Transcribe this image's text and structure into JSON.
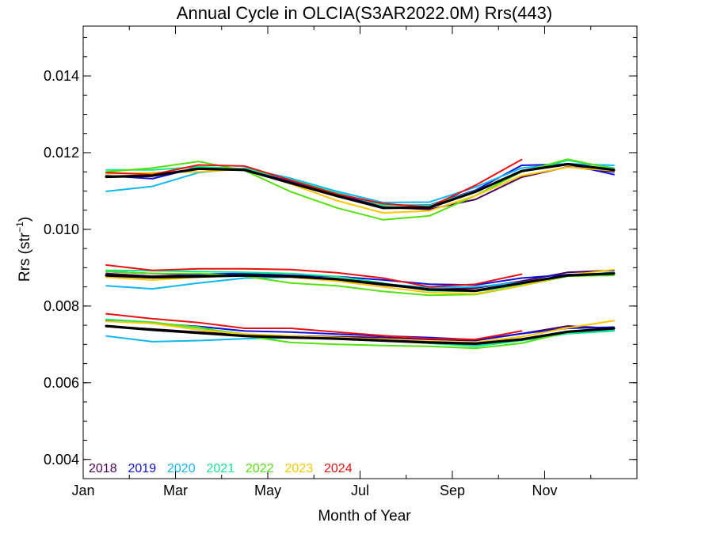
{
  "chart_data": {
    "type": "line",
    "title": "Annual Cycle in OLCIA(S3AR2022.0M) Rrs(443)",
    "xlabel": "Month of Year",
    "ylabel_main": "Rrs (str",
    "ylabel_sup": "−1",
    "ylabel_end": ")",
    "xlim": [
      0,
      12
    ],
    "ylim": [
      0.0035,
      0.0153
    ],
    "x_ticks": [
      {
        "value": 0,
        "label": "Jan"
      },
      {
        "value": 2,
        "label": "Mar"
      },
      {
        "value": 4,
        "label": "May"
      },
      {
        "value": 6,
        "label": "Jul"
      },
      {
        "value": 8,
        "label": "Sep"
      },
      {
        "value": 10,
        "label": "Nov"
      }
    ],
    "x_minor_ticks": [
      1,
      3,
      5,
      7,
      9,
      11
    ],
    "y_ticks": [
      {
        "value": 0.004,
        "label": "0.004"
      },
      {
        "value": 0.006,
        "label": "0.006"
      },
      {
        "value": 0.008,
        "label": "0.008"
      },
      {
        "value": 0.01,
        "label": "0.010"
      },
      {
        "value": 0.012,
        "label": "0.012"
      },
      {
        "value": 0.014,
        "label": "0.014"
      }
    ],
    "y_minor_step": 0.0005,
    "legend_position": "bottom-left",
    "x": [
      0.5,
      1.5,
      2.5,
      3.5,
      4.5,
      5.5,
      6.5,
      7.5,
      8.5,
      9.5,
      10.5,
      11.5
    ],
    "groups": [
      {
        "series": [
          {
            "name": "2018",
            "color": "#4b0055",
            "values": [
              0.01137,
              0.01141,
              0.01157,
              0.01155,
              0.01125,
              0.0109,
              0.01058,
              0.01052,
              0.01078,
              0.01136,
              0.01163,
              0.0115
            ]
          },
          {
            "name": "2019",
            "color": "#1010dd",
            "values": [
              0.0114,
              0.01132,
              0.01162,
              0.01157,
              0.01124,
              0.01092,
              0.01063,
              0.01063,
              0.01102,
              0.01167,
              0.0117,
              0.01143
            ]
          },
          {
            "name": "2020",
            "color": "#10b8f0",
            "values": [
              0.01099,
              0.01112,
              0.01148,
              0.0116,
              0.01133,
              0.01099,
              0.0107,
              0.01071,
              0.0111,
              0.0116,
              0.01171,
              0.01167
            ]
          },
          {
            "name": "2021",
            "color": "#10e890",
            "values": [
              0.01155,
              0.01155,
              0.01163,
              0.01158,
              0.0113,
              0.01095,
              0.01063,
              0.01062,
              0.011,
              0.0115,
              0.0118,
              0.0116
            ]
          },
          {
            "name": "2022",
            "color": "#55e010",
            "values": [
              0.0115,
              0.0116,
              0.01177,
              0.01153,
              0.01098,
              0.01056,
              0.01025,
              0.01035,
              0.01088,
              0.0115,
              0.01183,
              0.01157
            ]
          },
          {
            "name": "2023",
            "color": "#f8c800",
            "values": [
              0.01145,
              0.01148,
              0.0115,
              0.01157,
              0.01118,
              0.01075,
              0.01043,
              0.01048,
              0.01088,
              0.0114,
              0.01162,
              0.01153
            ]
          },
          {
            "name": "2024",
            "color": "#e81010",
            "values": [
              0.01148,
              0.01143,
              0.01168,
              0.01165,
              0.01128,
              0.01092,
              0.01067,
              0.01058,
              0.01115,
              0.01182,
              null,
              null
            ]
          }
        ],
        "mean": [
          0.01137,
          0.0114,
          0.01158,
          0.01155,
          0.01121,
          0.01087,
          0.01056,
          0.01057,
          0.01098,
          0.01152,
          0.0117,
          0.01155
        ]
      },
      {
        "series": [
          {
            "name": "2018",
            "color": "#4b0055",
            "values": [
              0.00885,
              0.00878,
              0.00882,
              0.0088,
              0.00878,
              0.00868,
              0.00855,
              0.00843,
              0.00847,
              0.00865,
              0.00888,
              0.00893
            ]
          },
          {
            "name": "2019",
            "color": "#1010dd",
            "values": [
              0.0089,
              0.00885,
              0.00883,
              0.00885,
              0.0088,
              0.00877,
              0.00868,
              0.00857,
              0.00855,
              0.00873,
              0.00882,
              0.00885
            ]
          },
          {
            "name": "2020",
            "color": "#10b8f0",
            "values": [
              0.00853,
              0.00845,
              0.0086,
              0.00873,
              0.00875,
              0.00868,
              0.00858,
              0.00848,
              0.0085,
              0.00862,
              0.00878,
              0.00888
            ]
          },
          {
            "name": "2021",
            "color": "#10e890",
            "values": [
              0.00893,
              0.00892,
              0.0089,
              0.00888,
              0.00885,
              0.00877,
              0.0086,
              0.0084,
              0.00838,
              0.00855,
              0.0088,
              0.00883
            ]
          },
          {
            "name": "2022",
            "color": "#55e010",
            "values": [
              0.0089,
              0.00885,
              0.00885,
              0.00878,
              0.0086,
              0.00853,
              0.00838,
              0.00828,
              0.0083,
              0.00853,
              0.00878,
              0.0088
            ]
          },
          {
            "name": "2023",
            "color": "#f8c800",
            "values": [
              0.00875,
              0.00868,
              0.00875,
              0.0088,
              0.00875,
              0.00865,
              0.0085,
              0.00835,
              0.00832,
              0.00853,
              0.0088,
              0.00895
            ]
          },
          {
            "name": "2024",
            "color": "#e81010",
            "values": [
              0.00907,
              0.00893,
              0.00897,
              0.00897,
              0.00895,
              0.00887,
              0.00873,
              0.0085,
              0.00857,
              0.00883,
              null,
              null
            ]
          }
        ],
        "mean": [
          0.0088,
          0.00875,
          0.00877,
          0.0088,
          0.00877,
          0.0087,
          0.00857,
          0.00843,
          0.0084,
          0.0086,
          0.0088,
          0.00885
        ]
      },
      {
        "series": [
          {
            "name": "2018",
            "color": "#4b0055",
            "values": [
              0.00747,
              0.0074,
              0.00732,
              0.00725,
              0.00722,
              0.0072,
              0.00718,
              0.00713,
              0.0071,
              0.00728,
              0.00748,
              0.00742
            ]
          },
          {
            "name": "2019",
            "color": "#1010dd",
            "values": [
              0.00762,
              0.00755,
              0.00747,
              0.00735,
              0.00732,
              0.00727,
              0.00722,
              0.00718,
              0.00712,
              0.00728,
              0.00742,
              0.00745
            ]
          },
          {
            "name": "2020",
            "color": "#10b8f0",
            "values": [
              0.00722,
              0.00707,
              0.0071,
              0.00715,
              0.00717,
              0.00715,
              0.0071,
              0.00703,
              0.00698,
              0.00712,
              0.0073,
              0.00738
            ]
          },
          {
            "name": "2021",
            "color": "#10e890",
            "values": [
              0.00765,
              0.00758,
              0.00743,
              0.00727,
              0.00722,
              0.00718,
              0.00712,
              0.00703,
              0.00695,
              0.0071,
              0.00728,
              0.00735
            ]
          },
          {
            "name": "2022",
            "color": "#55e010",
            "values": [
              0.0076,
              0.00757,
              0.00745,
              0.00722,
              0.00705,
              0.007,
              0.00697,
              0.00695,
              0.0069,
              0.00703,
              0.00732,
              0.00742
            ]
          },
          {
            "name": "2023",
            "color": "#f8c800",
            "values": [
              0.0076,
              0.00755,
              0.00738,
              0.00727,
              0.00722,
              0.00718,
              0.00713,
              0.00708,
              0.00705,
              0.0072,
              0.00743,
              0.00762
            ]
          },
          {
            "name": "2024",
            "color": "#e81010",
            "values": [
              0.0078,
              0.00767,
              0.00757,
              0.00742,
              0.00742,
              0.00732,
              0.00723,
              0.00715,
              0.00713,
              0.00735,
              null,
              null
            ]
          }
        ],
        "mean": [
          0.00748,
          0.00738,
          0.0073,
          0.00722,
          0.00718,
          0.00715,
          0.0071,
          0.00705,
          0.00702,
          0.00713,
          0.00733,
          0.00742
        ]
      }
    ],
    "legend": [
      {
        "label": "2018",
        "color": "#4b0055"
      },
      {
        "label": "2019",
        "color": "#1010dd"
      },
      {
        "label": "2020",
        "color": "#10b8f0"
      },
      {
        "label": "2021",
        "color": "#10e890"
      },
      {
        "label": "2022",
        "color": "#55e010"
      },
      {
        "label": "2023",
        "color": "#f8c800"
      },
      {
        "label": "2024",
        "color": "#e81010"
      }
    ]
  }
}
